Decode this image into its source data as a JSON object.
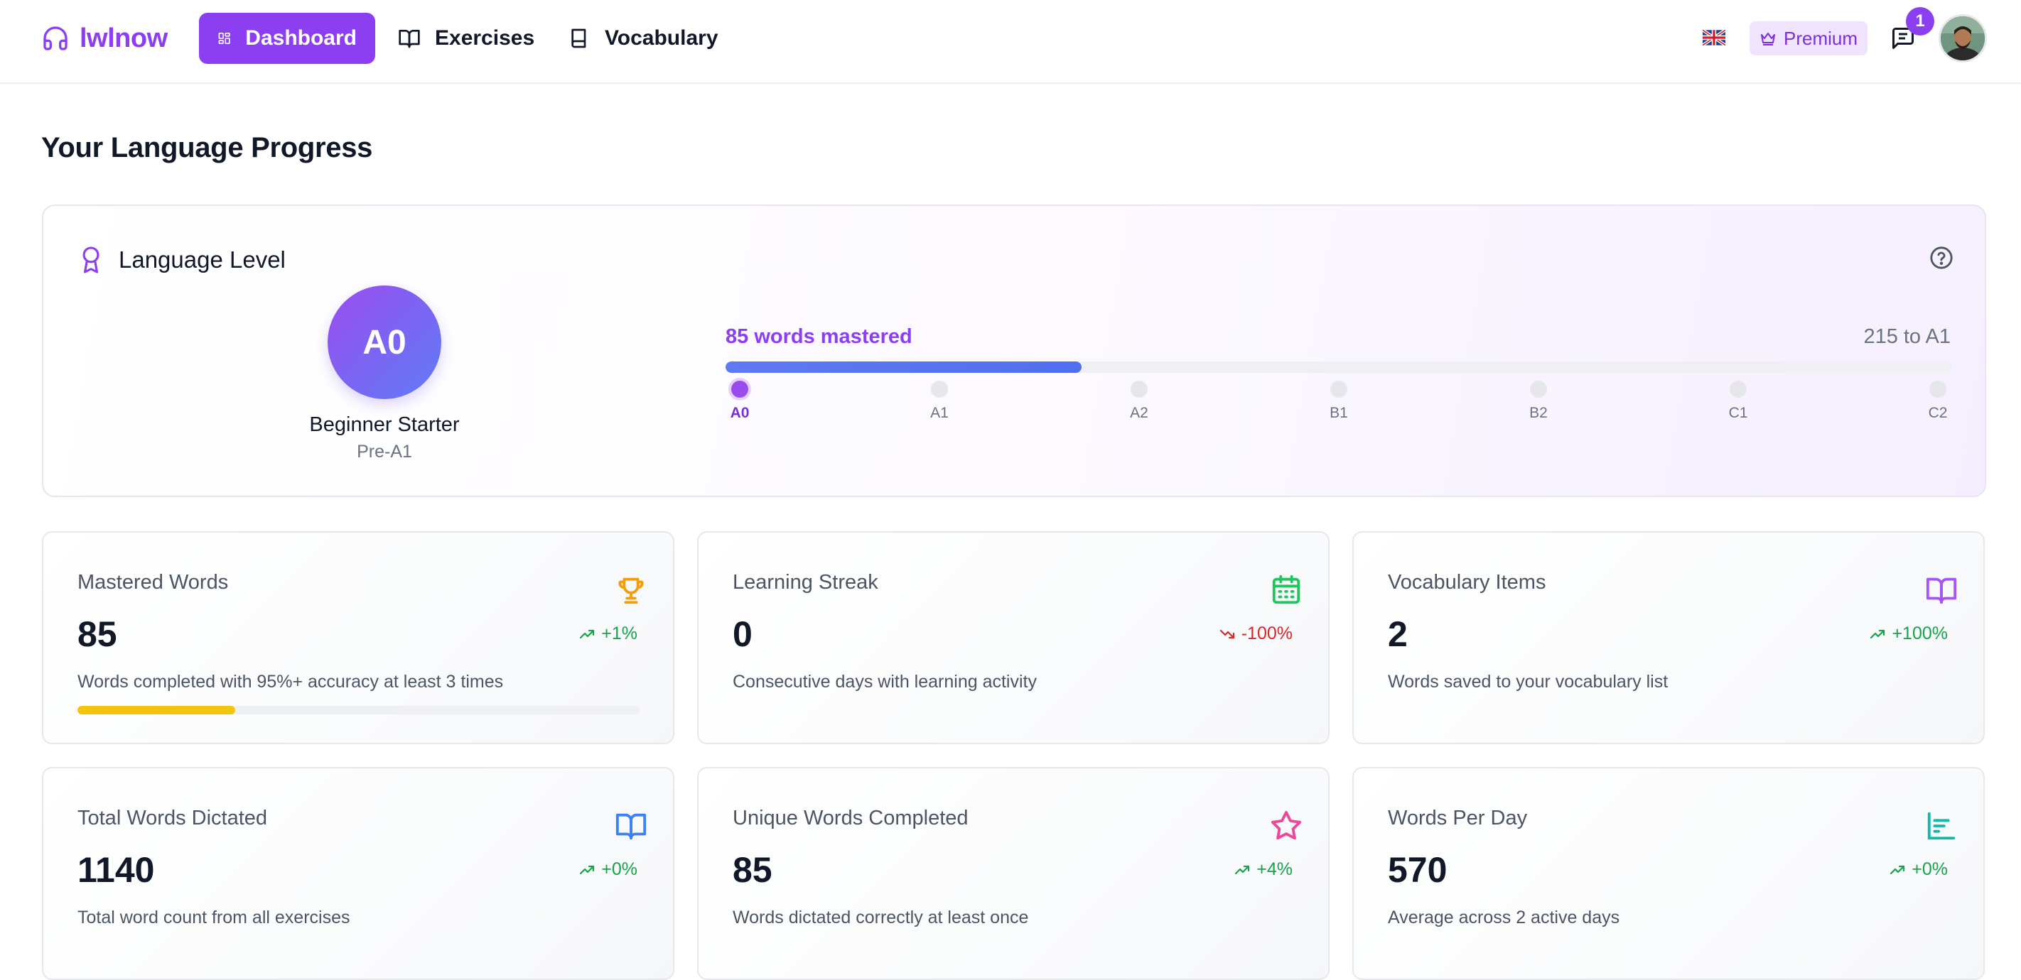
{
  "brand": {
    "name": "lwlnow",
    "icon": "headphones-icon",
    "color": "#8b3ff0"
  },
  "nav": {
    "items": [
      {
        "label": "Dashboard",
        "icon": "dashboard-grid-icon",
        "active": true
      },
      {
        "label": "Exercises",
        "icon": "open-book-icon",
        "active": false
      },
      {
        "label": "Vocabulary",
        "icon": "book-icon",
        "active": false
      }
    ],
    "language_flag": "uk-flag-icon",
    "premium_label": "Premium",
    "notification_count": "1"
  },
  "page": {
    "title": "Your Language Progress"
  },
  "level": {
    "title": "Language Level",
    "current": "A0",
    "name": "Beginner Starter",
    "sub": "Pre-A1",
    "mastered_text": "85 words mastered",
    "to_next_text": "215 to A1",
    "progress_fraction": 0.29,
    "steps": [
      "A0",
      "A1",
      "A2",
      "B1",
      "B2",
      "C1",
      "C2"
    ]
  },
  "stats": [
    {
      "title": "Mastered Words",
      "value": "85",
      "trend": "+1%",
      "direction": "up",
      "desc": "Words completed with 95%+ accuracy at least 3 times",
      "icon": "trophy-icon",
      "icon_color": "#f59e0b",
      "progress_fraction": 0.28
    },
    {
      "title": "Learning Streak",
      "value": "0",
      "trend": "-100%",
      "direction": "down",
      "desc": "Consecutive days with learning activity",
      "icon": "calendar-icon",
      "icon_color": "#22c55e"
    },
    {
      "title": "Vocabulary Items",
      "value": "2",
      "trend": "+100%",
      "direction": "up",
      "desc": "Words saved to your vocabulary list",
      "icon": "open-book-icon",
      "icon_color": "#a855f7"
    },
    {
      "title": "Total Words Dictated",
      "value": "1140",
      "trend": "+0%",
      "direction": "up",
      "desc": "Total word count from all exercises",
      "icon": "open-book-icon",
      "icon_color": "#3b82f6"
    },
    {
      "title": "Unique Words Completed",
      "value": "85",
      "trend": "+4%",
      "direction": "up",
      "desc": "Words dictated correctly at least once",
      "icon": "star-icon",
      "icon_color": "#ec4899"
    },
    {
      "title": "Words Per Day",
      "value": "570",
      "trend": "+0%",
      "direction": "up",
      "desc": "Average across 2 active days",
      "icon": "bar-chart-icon",
      "icon_color": "#14b8a6"
    }
  ]
}
